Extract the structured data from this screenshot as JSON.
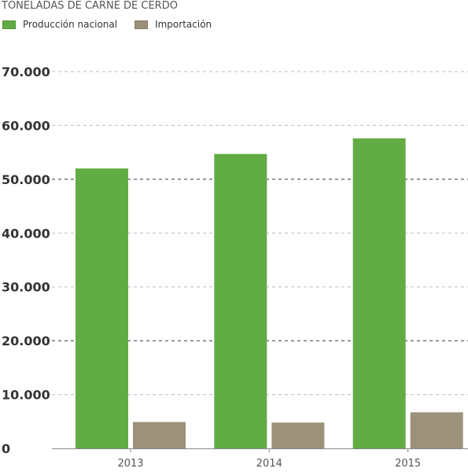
{
  "title": "TONELADAS DE CARNE DE CERDO",
  "chart_data": {
    "type": "bar",
    "title": "TONELADAS DE CARNE DE CERDO",
    "xlabel": "",
    "ylabel": "",
    "categories": [
      "2013",
      "2014",
      "2015"
    ],
    "series": [
      {
        "name": "Producción nacional",
        "values": [
          52000,
          54700,
          57600
        ],
        "color": "#62ac45"
      },
      {
        "name": "Importación",
        "values": [
          4900,
          4800,
          6700
        ],
        "color": "#9c917a"
      }
    ],
    "ylim": [
      0,
      70000
    ],
    "yticks": [
      0,
      10000,
      20000,
      30000,
      40000,
      50000,
      60000,
      70000
    ],
    "ytick_labels": [
      "0",
      "10.000",
      "20.000",
      "30.000",
      "40.000",
      "50.000",
      "60.000",
      "70.000"
    ],
    "grid": true,
    "legend_position": "top-left"
  }
}
